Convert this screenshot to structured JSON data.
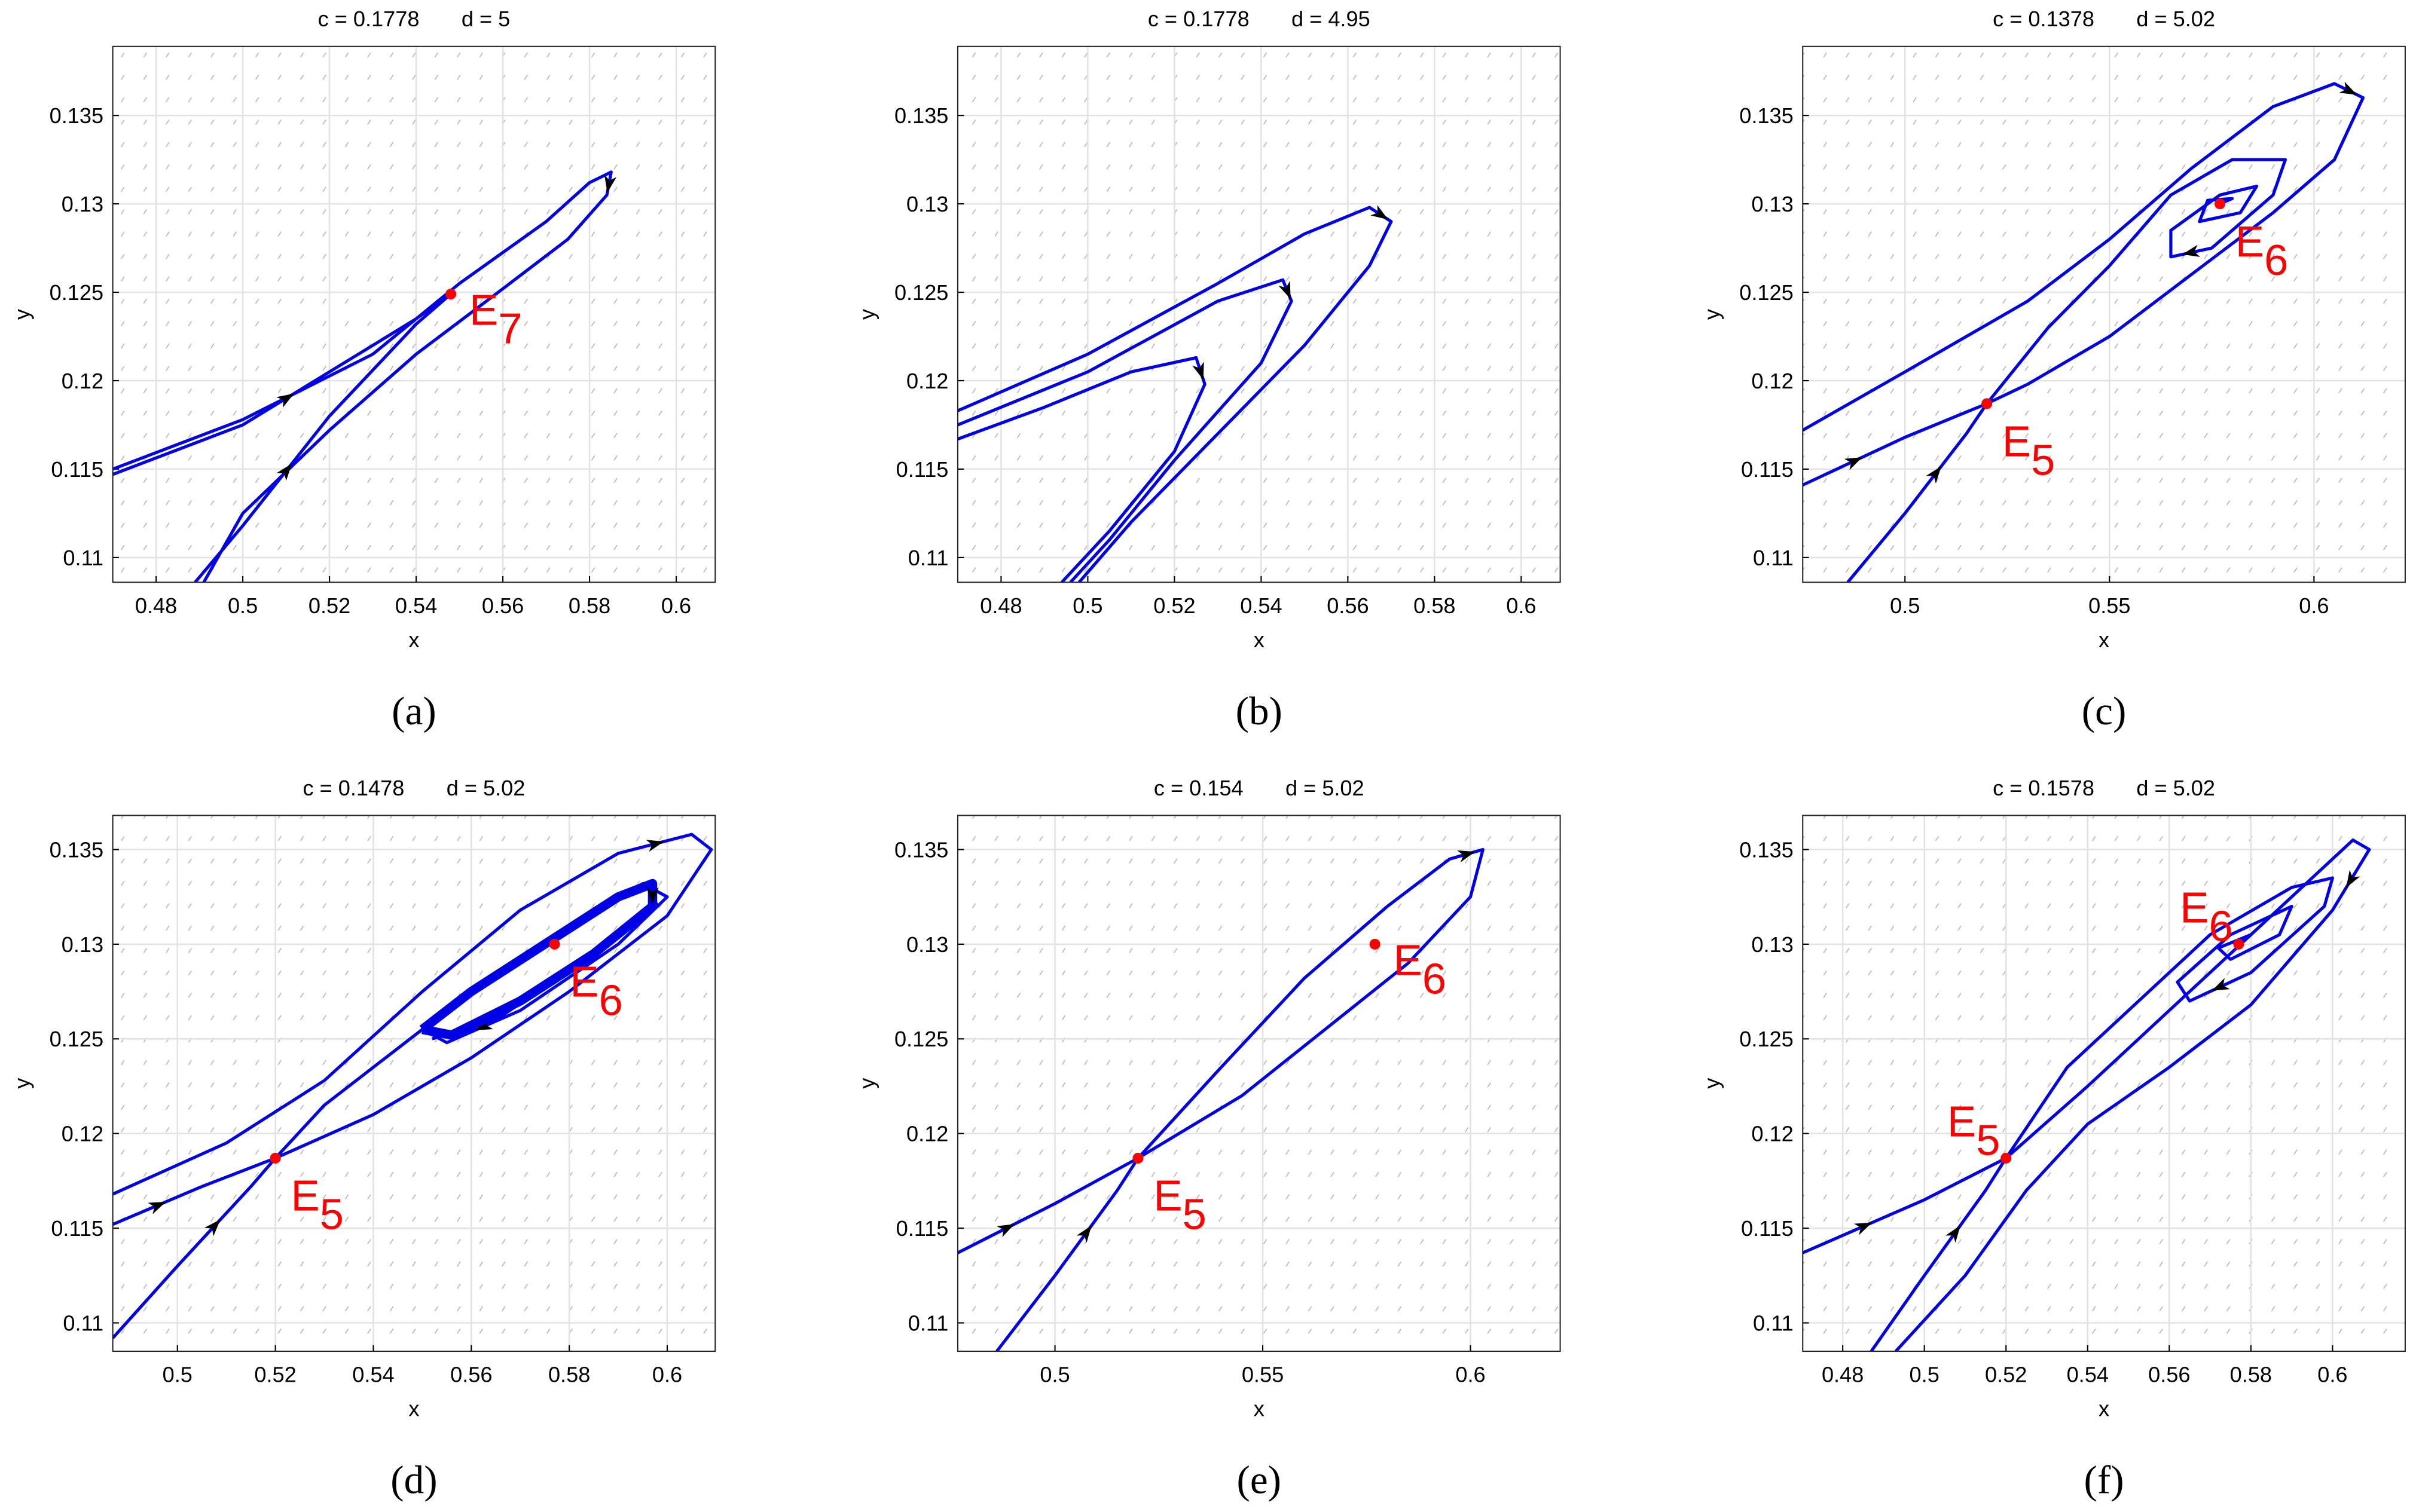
{
  "chart_data": [
    {
      "type": "line",
      "title": "c = 0.1778       d = 5",
      "xlabel": "x",
      "ylabel": "y",
      "caption": "(a)",
      "xlim": [
        0.47,
        0.609
      ],
      "ylim": [
        0.1086,
        0.1389
      ],
      "xticks": [
        0.48,
        0.5,
        0.52,
        0.54,
        0.56,
        0.58,
        0.6
      ],
      "yticks": [
        0.11,
        0.115,
        0.12,
        0.125,
        0.13,
        0.135
      ],
      "grid": true,
      "series": [
        {
          "color": "#0000e6",
          "x": [
            0.47,
            0.5,
            0.53,
            0.55,
            0.57,
            0.58,
            0.585,
            0.584,
            0.575,
            0.56,
            0.54,
            0.52,
            0.5,
            0.491
          ],
          "y": [
            0.115,
            0.1178,
            0.1215,
            0.1255,
            0.129,
            0.1312,
            0.1318,
            0.1305,
            0.128,
            0.1252,
            0.1215,
            0.1172,
            0.1125,
            0.1086
          ]
        },
        {
          "color": "#0000e6",
          "x": [
            0.47,
            0.5,
            0.52,
            0.54,
            0.548
          ],
          "y": [
            0.1147,
            0.1175,
            0.1205,
            0.1235,
            0.1249
          ]
        },
        {
          "color": "#0000e6",
          "x": [
            0.489,
            0.5,
            0.52,
            0.54,
            0.548
          ],
          "y": [
            0.1086,
            0.1118,
            0.118,
            0.1232,
            0.1249
          ]
        }
      ],
      "points": [
        {
          "label": "E",
          "sub": "7",
          "x": 0.548,
          "y": 0.1249,
          "color": "#ff0000",
          "anchor": "e"
        }
      ]
    },
    {
      "type": "line",
      "title": "c = 0.1778       d = 4.95",
      "xlabel": "x",
      "ylabel": "y",
      "caption": "(b)",
      "xlim": [
        0.47,
        0.609
      ],
      "ylim": [
        0.1086,
        0.1389
      ],
      "xticks": [
        0.48,
        0.5,
        0.52,
        0.54,
        0.56,
        0.58,
        0.6
      ],
      "yticks": [
        0.11,
        0.115,
        0.12,
        0.125,
        0.13,
        0.135
      ],
      "grid": true,
      "series": [
        {
          "color": "#0000e6",
          "x": [
            0.47,
            0.5,
            0.53,
            0.55,
            0.565,
            0.57,
            0.565,
            0.55,
            0.53,
            0.51,
            0.498
          ],
          "y": [
            0.1183,
            0.1215,
            0.1255,
            0.1283,
            0.1298,
            0.129,
            0.1265,
            0.122,
            0.117,
            0.112,
            0.1086
          ]
        },
        {
          "color": "#0000e6",
          "x": [
            0.47,
            0.5,
            0.53,
            0.545,
            0.547,
            0.54,
            0.52,
            0.505,
            0.496
          ],
          "y": [
            0.1175,
            0.1205,
            0.1245,
            0.1257,
            0.1245,
            0.121,
            0.1155,
            0.111,
            0.1086
          ]
        },
        {
          "color": "#0000e6",
          "x": [
            0.47,
            0.49,
            0.51,
            0.525,
            0.527,
            0.52,
            0.505,
            0.494
          ],
          "y": [
            0.1167,
            0.1185,
            0.1205,
            0.1213,
            0.1198,
            0.116,
            0.1115,
            0.1086
          ]
        }
      ],
      "points": []
    },
    {
      "type": "line",
      "title": "c = 0.1378       d = 5.02",
      "xlabel": "x",
      "ylabel": "y",
      "caption": "(c)",
      "xlim": [
        0.475,
        0.6223
      ],
      "ylim": [
        0.1086,
        0.1389
      ],
      "xticks": [
        0.5,
        0.55,
        0.6
      ],
      "yticks": [
        0.11,
        0.115,
        0.12,
        0.125,
        0.13,
        0.135
      ],
      "grid": true,
      "series": [
        {
          "color": "#0000e6",
          "x": [
            0.475,
            0.5,
            0.53,
            0.55,
            0.57,
            0.59,
            0.605,
            0.612,
            0.605,
            0.59,
            0.57,
            0.55,
            0.53,
            0.52
          ],
          "y": [
            0.1172,
            0.1205,
            0.1245,
            0.128,
            0.132,
            0.1355,
            0.1368,
            0.136,
            0.1325,
            0.1295,
            0.126,
            0.1225,
            0.1198,
            0.1187
          ]
        },
        {
          "color": "#0000e6",
          "x": [
            0.475,
            0.5,
            0.52
          ],
          "y": [
            0.1141,
            0.1168,
            0.1187
          ]
        },
        {
          "color": "#0000e6",
          "x": [
            0.486,
            0.5,
            0.515,
            0.52
          ],
          "y": [
            0.1086,
            0.1125,
            0.117,
            0.1187
          ]
        },
        {
          "color": "#0000e6",
          "x": [
            0.52,
            0.535,
            0.55,
            0.565,
            0.58,
            0.593,
            0.59,
            0.575,
            0.565,
            0.565,
            0.577,
            0.586,
            0.582,
            0.572,
            0.574,
            0.58,
            0.577
          ],
          "y": [
            0.1187,
            0.123,
            0.1265,
            0.1305,
            0.1325,
            0.1325,
            0.1305,
            0.1275,
            0.127,
            0.1285,
            0.1305,
            0.131,
            0.1295,
            0.129,
            0.1302,
            0.1303,
            0.13
          ]
        }
      ],
      "points": [
        {
          "label": "E",
          "sub": "6",
          "x": 0.577,
          "y": 0.13,
          "color": "#ff0000",
          "anchor": "se"
        },
        {
          "label": "E",
          "sub": "5",
          "x": 0.52,
          "y": 0.1187,
          "color": "#ff0000",
          "anchor": "se"
        }
      ]
    },
    {
      "type": "line",
      "title": "c = 0.1478       d = 5.02",
      "xlabel": "x",
      "ylabel": "y",
      "caption": "(d)",
      "xlim": [
        0.4868,
        0.6098
      ],
      "ylim": [
        0.1085,
        0.1368
      ],
      "xticks": [
        0.5,
        0.52,
        0.54,
        0.56,
        0.58,
        0.6
      ],
      "yticks": [
        0.11,
        0.115,
        0.12,
        0.125,
        0.13,
        0.135
      ],
      "grid": true,
      "series": [
        {
          "color": "#0000e6",
          "x": [
            0.4868,
            0.51,
            0.53,
            0.55,
            0.57,
            0.59,
            0.605,
            0.609,
            0.6,
            0.58,
            0.56,
            0.54,
            0.52
          ],
          "y": [
            0.1168,
            0.1195,
            0.1228,
            0.1275,
            0.1318,
            0.1348,
            0.1358,
            0.135,
            0.1315,
            0.1275,
            0.124,
            0.121,
            0.1187
          ]
        },
        {
          "color": "#0000e6",
          "x": [
            0.4868,
            0.505,
            0.52
          ],
          "y": [
            0.1152,
            0.1172,
            0.1187
          ]
        },
        {
          "color": "#0000e6",
          "x": [
            0.4868,
            0.5,
            0.515,
            0.52
          ],
          "y": [
            0.1092,
            0.113,
            0.1172,
            0.1187
          ]
        },
        {
          "color": "#0000e6",
          "x": [
            0.52,
            0.53,
            0.545,
            0.56,
            0.58,
            0.595,
            0.6,
            0.59,
            0.57,
            0.555,
            0.55,
            0.56,
            0.58,
            0.596,
            0.598,
            0.585,
            0.565,
            0.552
          ],
          "y": [
            0.1187,
            0.1215,
            0.1245,
            0.1275,
            0.1308,
            0.1332,
            0.1325,
            0.13,
            0.1265,
            0.1248,
            0.1255,
            0.1275,
            0.131,
            0.1332,
            0.132,
            0.1295,
            0.126,
            0.125
          ]
        },
        {
          "color": "#0000e6",
          "width": 6,
          "x": [
            0.55,
            0.56,
            0.575,
            0.59,
            0.597,
            0.597,
            0.585,
            0.57,
            0.556,
            0.55
          ],
          "y": [
            0.1255,
            0.1275,
            0.13,
            0.1325,
            0.1332,
            0.132,
            0.1295,
            0.127,
            0.1252,
            0.1255
          ]
        }
      ],
      "points": [
        {
          "label": "E",
          "sub": "6",
          "x": 0.577,
          "y": 0.13,
          "color": "#ff0000",
          "anchor": "se"
        },
        {
          "label": "E",
          "sub": "5",
          "x": 0.52,
          "y": 0.1187,
          "color": "#ff0000",
          "anchor": "se"
        }
      ]
    },
    {
      "type": "line",
      "title": "c = 0.154       d = 5.02",
      "xlabel": "x",
      "ylabel": "y",
      "caption": "(e)",
      "xlim": [
        0.4766,
        0.6216
      ],
      "ylim": [
        0.1085,
        0.1368
      ],
      "xticks": [
        0.5,
        0.55,
        0.6
      ],
      "yticks": [
        0.11,
        0.115,
        0.12,
        0.125,
        0.13,
        0.135
      ],
      "grid": true,
      "series": [
        {
          "color": "#0000e6",
          "x": [
            0.4766,
            0.5,
            0.52
          ],
          "y": [
            0.1137,
            0.1163,
            0.1187
          ]
        },
        {
          "color": "#0000e6",
          "x": [
            0.486,
            0.5,
            0.515,
            0.52
          ],
          "y": [
            0.1085,
            0.1125,
            0.117,
            0.1187
          ]
        },
        {
          "color": "#0000e6",
          "x": [
            0.52,
            0.54,
            0.56,
            0.58,
            0.595,
            0.603,
            0.6,
            0.585,
            0.565,
            0.545,
            0.52
          ],
          "y": [
            0.1187,
            0.1235,
            0.1282,
            0.132,
            0.1345,
            0.135,
            0.1325,
            0.129,
            0.1255,
            0.122,
            0.1187
          ]
        }
      ],
      "points": [
        {
          "label": "E",
          "sub": "6",
          "x": 0.577,
          "y": 0.13,
          "color": "#ff0000",
          "anchor": "e"
        },
        {
          "label": "E",
          "sub": "5",
          "x": 0.52,
          "y": 0.1187,
          "color": "#ff0000",
          "anchor": "se"
        }
      ]
    },
    {
      "type": "line",
      "title": "c = 0.1578       d = 5.02",
      "xlabel": "x",
      "ylabel": "y",
      "caption": "(f)",
      "xlim": [
        0.4702,
        0.6178
      ],
      "ylim": [
        0.1085,
        0.1368
      ],
      "xticks": [
        0.48,
        0.5,
        0.52,
        0.54,
        0.56,
        0.58,
        0.6
      ],
      "yticks": [
        0.11,
        0.115,
        0.12,
        0.125,
        0.13,
        0.135
      ],
      "grid": true,
      "series": [
        {
          "color": "#0000e6",
          "x": [
            0.4702,
            0.5,
            0.52
          ],
          "y": [
            0.1137,
            0.1165,
            0.1187
          ]
        },
        {
          "color": "#0000e6",
          "x": [
            0.487,
            0.5,
            0.515,
            0.52
          ],
          "y": [
            0.1085,
            0.1125,
            0.117,
            0.1187
          ]
        },
        {
          "color": "#0000e6",
          "x": [
            0.52,
            0.54,
            0.56,
            0.58,
            0.595,
            0.605,
            0.609,
            0.6,
            0.58,
            0.56,
            0.54,
            0.525,
            0.51,
            0.493
          ],
          "y": [
            0.1187,
            0.1225,
            0.1265,
            0.1305,
            0.1335,
            0.1355,
            0.135,
            0.1318,
            0.1268,
            0.1235,
            0.1205,
            0.117,
            0.1125,
            0.1085
          ]
        },
        {
          "color": "#0000e6",
          "x": [
            0.52,
            0.535,
            0.55,
            0.57,
            0.59,
            0.6,
            0.598,
            0.58,
            0.565,
            0.562,
            0.575,
            0.59,
            0.587,
            0.575,
            0.572,
            0.58,
            0.577
          ],
          "y": [
            0.1187,
            0.1235,
            0.1265,
            0.1305,
            0.133,
            0.1335,
            0.132,
            0.1285,
            0.127,
            0.128,
            0.1305,
            0.132,
            0.1305,
            0.1292,
            0.1298,
            0.1305,
            0.13
          ]
        }
      ],
      "points": [
        {
          "label": "E",
          "sub": "6",
          "x": 0.577,
          "y": 0.13,
          "color": "#ff0000",
          "anchor": "nw"
        },
        {
          "label": "E",
          "sub": "5",
          "x": 0.52,
          "y": 0.1187,
          "color": "#ff0000",
          "anchor": "nw"
        }
      ]
    }
  ]
}
